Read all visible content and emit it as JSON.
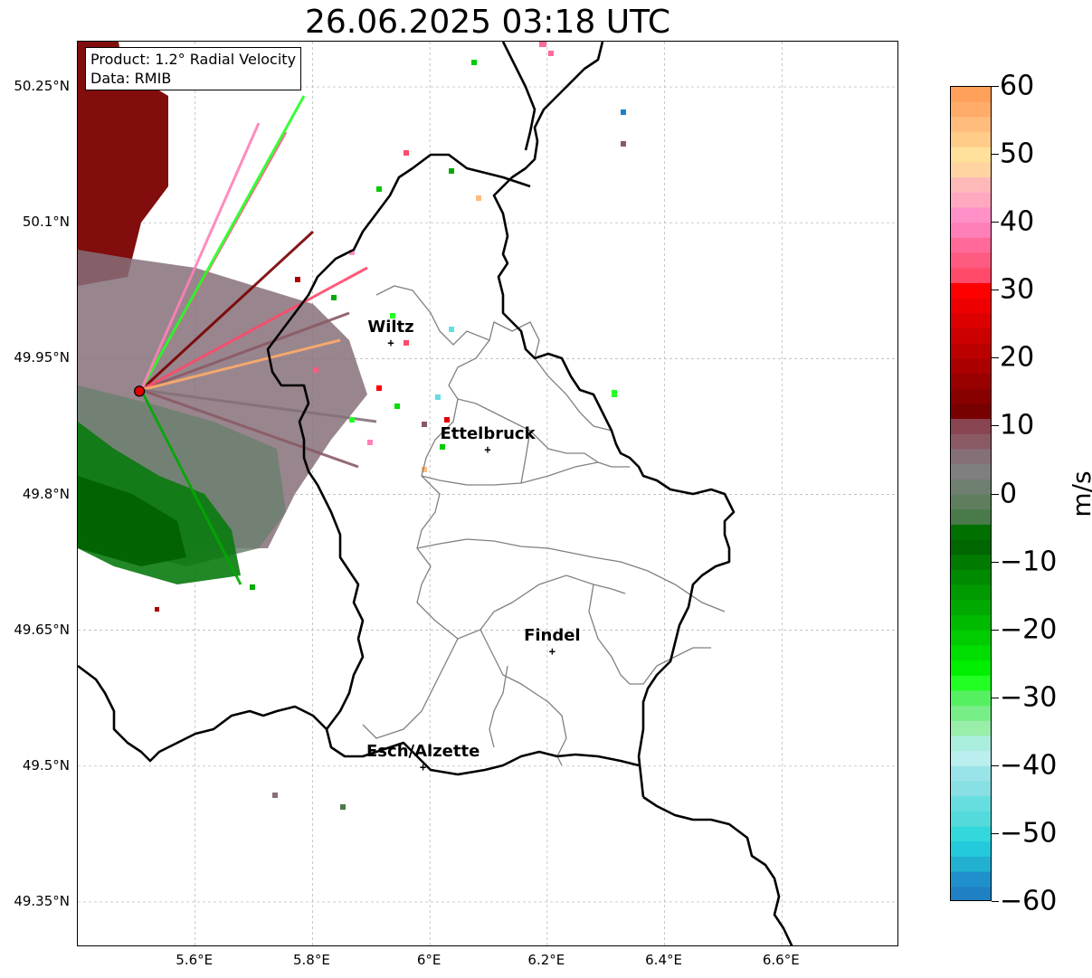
{
  "title": "26.06.2025 03:18 UTC",
  "info": {
    "product": "Product: 1.2° Radial Velocity",
    "source": "Data: RMIB"
  },
  "map": {
    "lon_range": [
      5.4,
      6.8
    ],
    "lat_range": [
      49.3,
      50.3
    ],
    "lat_ticks": [
      {
        "value": 50.25,
        "label": "50.25°N"
      },
      {
        "value": 50.1,
        "label": "50.1°N"
      },
      {
        "value": 49.95,
        "label": "49.95°N"
      },
      {
        "value": 49.8,
        "label": "49.8°N"
      },
      {
        "value": 49.65,
        "label": "49.65°N"
      },
      {
        "value": 49.5,
        "label": "49.5°N"
      },
      {
        "value": 49.35,
        "label": "49.35°N"
      }
    ],
    "lon_ticks": [
      {
        "value": 5.6,
        "label": "5.6°E"
      },
      {
        "value": 5.8,
        "label": "5.8°E"
      },
      {
        "value": 6.0,
        "label": "6°E"
      },
      {
        "value": 6.2,
        "label": "6.2°E"
      },
      {
        "value": 6.4,
        "label": "6.4°E"
      },
      {
        "value": 6.6,
        "label": "6.6°E"
      }
    ],
    "radar_site": {
      "lon": 5.505,
      "lat": 49.914,
      "color": "#e00000"
    },
    "cities": [
      {
        "name": "Wiltz",
        "lon": 5.935,
        "lat": 49.966
      },
      {
        "name": "Ettelbruck",
        "lon": 6.1,
        "lat": 49.848
      },
      {
        "name": "Findel",
        "lon": 6.21,
        "lat": 49.626
      },
      {
        "name": "Esch/Alzette",
        "lon": 5.99,
        "lat": 49.498
      }
    ]
  },
  "colorbar": {
    "unit": "m/s",
    "min": -60,
    "max": 60,
    "ticks": [
      {
        "value": 60,
        "label": "60"
      },
      {
        "value": 50,
        "label": "50"
      },
      {
        "value": 40,
        "label": "40"
      },
      {
        "value": 30,
        "label": "30"
      },
      {
        "value": 20,
        "label": "20"
      },
      {
        "value": 10,
        "label": "10"
      },
      {
        "value": 0,
        "label": "0"
      },
      {
        "value": -10,
        "label": "−10"
      },
      {
        "value": -20,
        "label": "−20"
      },
      {
        "value": -30,
        "label": "−30"
      },
      {
        "value": -40,
        "label": "−40"
      },
      {
        "value": -50,
        "label": "−50"
      },
      {
        "value": -60,
        "label": "−60"
      }
    ],
    "colors_top_to_bottom": [
      "#ffa05a",
      "#ffac6a",
      "#ffbc7c",
      "#ffcc8a",
      "#ffe09a",
      "#ffd4a0",
      "#ffb8b8",
      "#ffa8c0",
      "#ff90c8",
      "#ff80b8",
      "#ff6a98",
      "#ff5a80",
      "#ff4a6a",
      "#ff0000",
      "#ee0000",
      "#dd0000",
      "#cc0000",
      "#bb0000",
      "#aa0000",
      "#990000",
      "#880000",
      "#770000",
      "#884450",
      "#8a5a64",
      "#867078",
      "#7f7f7f",
      "#6f8070",
      "#5e7e5e",
      "#4a7a4a",
      "#007000",
      "#006600",
      "#007a00",
      "#008a00",
      "#009a00",
      "#00aa00",
      "#00ba00",
      "#00cc00",
      "#00dd00",
      "#00ee00",
      "#22ff22",
      "#55f060",
      "#77ee88",
      "#99eeaa",
      "#aaeedd",
      "#bbeeee",
      "#99e4e8",
      "#88e0e4",
      "#66dee0",
      "#55dadc",
      "#33d8dc",
      "#22cadc",
      "#22b0d0",
      "#2090cc",
      "#2080c4"
    ]
  }
}
